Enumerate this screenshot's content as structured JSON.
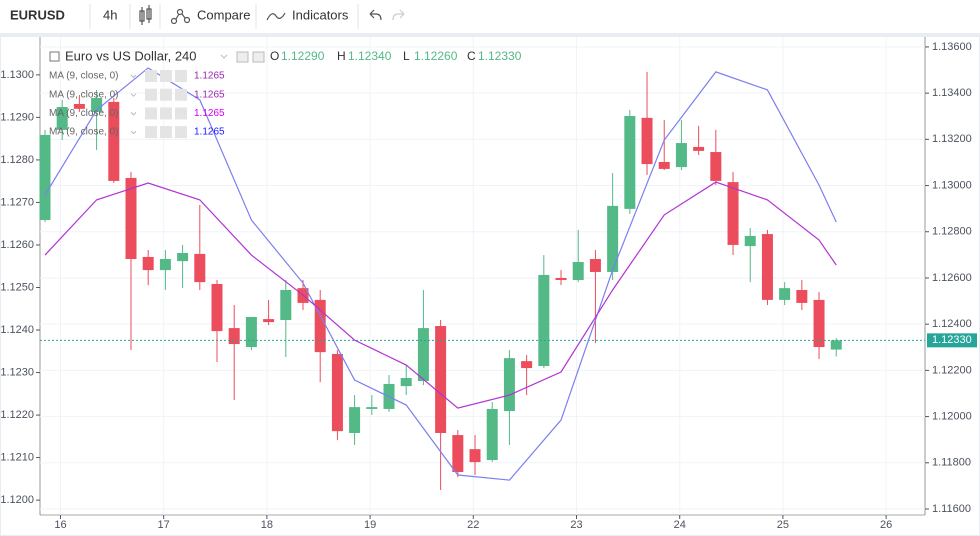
{
  "toolbar": {
    "symbol": "EURUSD",
    "interval": "4h",
    "compare": "Compare",
    "indicators": "Indicators"
  },
  "chart_data": {
    "type": "candlestick",
    "title": "Euro vs US Dollar, 240",
    "legend_ohlc": [
      [
        "O",
        "1.12290"
      ],
      [
        "H",
        "1.12340"
      ],
      [
        "L",
        "1.12260"
      ],
      [
        "C",
        "1.12330"
      ]
    ],
    "indicators": [
      {
        "name": "MA (9, close, 0)",
        "value": "1.1265",
        "color": "#9c27b0"
      },
      {
        "name": "MA (9, close, 0)",
        "value": "1.1265",
        "color": "#9c27b0"
      },
      {
        "name": "MA (9, close, 0)",
        "value": "1.1265",
        "color": "#d500f9"
      },
      {
        "name": "MA (9, close, 0)",
        "value": "1.1265",
        "color": "#1a1aff"
      }
    ],
    "candle_axis": "y2",
    "up_color": "#53b987",
    "down_color": "#eb4d5c",
    "x": [
      0,
      1,
      2,
      3,
      4,
      5,
      6,
      7,
      8,
      9,
      10,
      11,
      12,
      13,
      14,
      15,
      16,
      17,
      18,
      19,
      20,
      21,
      22,
      23,
      24,
      25,
      26,
      27,
      28,
      29,
      30,
      31,
      32,
      33,
      34,
      35,
      36,
      37,
      38,
      39,
      40,
      41,
      42,
      43,
      44,
      45,
      46
    ],
    "open": [
      1.12851,
      1.13241,
      1.13353,
      1.13319,
      1.13362,
      1.13033,
      1.12691,
      1.12634,
      1.12673,
      1.12704,
      1.12574,
      1.12383,
      1.12301,
      1.12422,
      1.12418,
      1.12556,
      1.12505,
      1.12271,
      1.11929,
      1.12033,
      1.12033,
      1.12132,
      1.12154,
      1.12392,
      1.1192,
      1.11859,
      1.11812,
      1.12024,
      1.1224,
      1.12219,
      1.126,
      1.12591,
      1.12682,
      1.12626,
      1.12899,
      1.13293,
      1.13102,
      1.1308,
      1.13167,
      1.13145,
      1.13015,
      1.12738,
      1.1279,
      1.12505,
      1.12548,
      1.12505,
      1.1229
    ],
    "high": [
      1.13241,
      1.13371,
      1.13392,
      1.13414,
      1.13379,
      1.13059,
      1.12721,
      1.12721,
      1.12743,
      1.12916,
      1.12591,
      1.12483,
      1.12431,
      1.12505,
      1.12591,
      1.12591,
      1.12548,
      1.12288,
      1.12093,
      1.12093,
      1.1218,
      1.12223,
      1.12548,
      1.12418,
      1.11942,
      1.1192,
      1.12063,
      1.12288,
      1.12266,
      1.12699,
      1.12634,
      1.12808,
      1.12721,
      1.13054,
      1.13327,
      1.13492,
      1.13284,
      1.13284,
      1.13258,
      1.13241,
      1.13059,
      1.12816,
      1.12808,
      1.12582,
      1.12591,
      1.12539,
      1.1234
    ],
    "low": [
      1.12842,
      1.13197,
      1.13319,
      1.13154,
      1.13011,
      1.12288,
      1.12569,
      1.12548,
      1.12556,
      1.12548,
      1.12236,
      1.12072,
      1.12288,
      1.12396,
      1.12258,
      1.12461,
      1.12149,
      1.11898,
      1.11877,
      1.12007,
      1.1202,
      1.12093,
      1.12136,
      1.11682,
      1.11738,
      1.11747,
      1.11803,
      1.11877,
      1.12093,
      1.1221,
      1.12569,
      1.12582,
      1.12318,
      1.12591,
      1.12877,
      1.13046,
      1.13067,
      1.13067,
      1.13132,
      1.13002,
      1.12699,
      1.12582,
      1.12483,
      1.12483,
      1.12461,
      1.12249,
      1.1226
    ],
    "close": [
      1.13219,
      1.1334,
      1.13332,
      1.13379,
      1.1302,
      1.12682,
      1.12634,
      1.12682,
      1.12708,
      1.12582,
      1.1237,
      1.12314,
      1.12431,
      1.12409,
      1.12548,
      1.12492,
      1.12279,
      1.11937,
      1.12041,
      1.12041,
      1.12141,
      1.12167,
      1.12383,
      1.11929,
      1.1176,
      1.11803,
      1.12033,
      1.12253,
      1.1221,
      1.12613,
      1.12591,
      1.12669,
      1.12626,
      1.12912,
      1.13301,
      1.13093,
      1.13072,
      1.13184,
      1.1315,
      1.1302,
      1.12743,
      1.12782,
      1.12505,
      1.12556,
      1.12492,
      1.12301,
      1.1233
    ],
    "indicator_lines": [
      {
        "color": "#7b7ff0",
        "x": [
          0,
          3,
          6,
          9,
          12,
          15,
          18,
          21,
          24,
          27,
          30,
          33,
          36,
          39,
          42,
          45,
          46
        ],
        "values": [
          1.12959,
          1.13327,
          1.13509,
          1.13371,
          1.12851,
          1.12578,
          1.12158,
          1.1205,
          1.11747,
          1.11725,
          1.11985,
          1.12634,
          1.13197,
          1.13492,
          1.13414,
          1.13002,
          1.12842
        ]
      },
      {
        "color": "#b233d4",
        "x": [
          0,
          3,
          6,
          9,
          12,
          15,
          18,
          21,
          24,
          27,
          30,
          33,
          36,
          39,
          42,
          45,
          46
        ],
        "values": [
          1.12699,
          1.12938,
          1.13011,
          1.12938,
          1.12699,
          1.12526,
          1.12331,
          1.12223,
          1.12037,
          1.12093,
          1.12193,
          1.12548,
          1.12873,
          1.13015,
          1.12938,
          1.12764,
          1.12656
        ]
      }
    ],
    "last_price": {
      "value": 1.1233,
      "label": "1.12330"
    },
    "last_price_color": "#26a69a",
    "xlim": [
      -0.29,
      51.16
    ],
    "xticks": [
      {
        "value": 0.9,
        "label": "16"
      },
      {
        "value": 6.9,
        "label": "17"
      },
      {
        "value": 12.9,
        "label": "18"
      },
      {
        "value": 18.9,
        "label": "19"
      },
      {
        "value": 24.9,
        "label": "22"
      },
      {
        "value": 30.9,
        "label": "23"
      },
      {
        "value": 36.9,
        "label": "24"
      },
      {
        "value": 42.9,
        "label": "25"
      },
      {
        "value": 48.9,
        "label": "26"
      }
    ],
    "ylim": [
      1.11965,
      1.13082
    ],
    "yticks": [
      {
        "value": 1.12,
        "label": "1.1200"
      },
      {
        "value": 1.121,
        "label": "1.1210"
      },
      {
        "value": 1.122,
        "label": "1.1220"
      },
      {
        "value": 1.123,
        "label": "1.1230"
      },
      {
        "value": 1.124,
        "label": "1.1240"
      },
      {
        "value": 1.125,
        "label": "1.1250"
      },
      {
        "value": 1.126,
        "label": "1.1260"
      },
      {
        "value": 1.127,
        "label": "1.1270"
      },
      {
        "value": 1.128,
        "label": "1.1280"
      },
      {
        "value": 1.129,
        "label": "1.1290"
      },
      {
        "value": 1.13,
        "label": "1.1300"
      }
    ],
    "y2lim": [
      1.11574,
      1.1363
    ],
    "y2ticks": [
      {
        "value": 1.116,
        "label": "1.11600"
      },
      {
        "value": 1.118,
        "label": "1.11800"
      },
      {
        "value": 1.12,
        "label": "1.12000"
      },
      {
        "value": 1.122,
        "label": "1.12200"
      },
      {
        "value": 1.124,
        "label": "1.12400"
      },
      {
        "value": 1.126,
        "label": "1.12600"
      },
      {
        "value": 1.128,
        "label": "1.12800"
      },
      {
        "value": 1.13,
        "label": "1.13000"
      },
      {
        "value": 1.132,
        "label": "1.13200"
      },
      {
        "value": 1.134,
        "label": "1.13400"
      },
      {
        "value": 1.136,
        "label": "1.13600"
      }
    ],
    "grid": true
  }
}
